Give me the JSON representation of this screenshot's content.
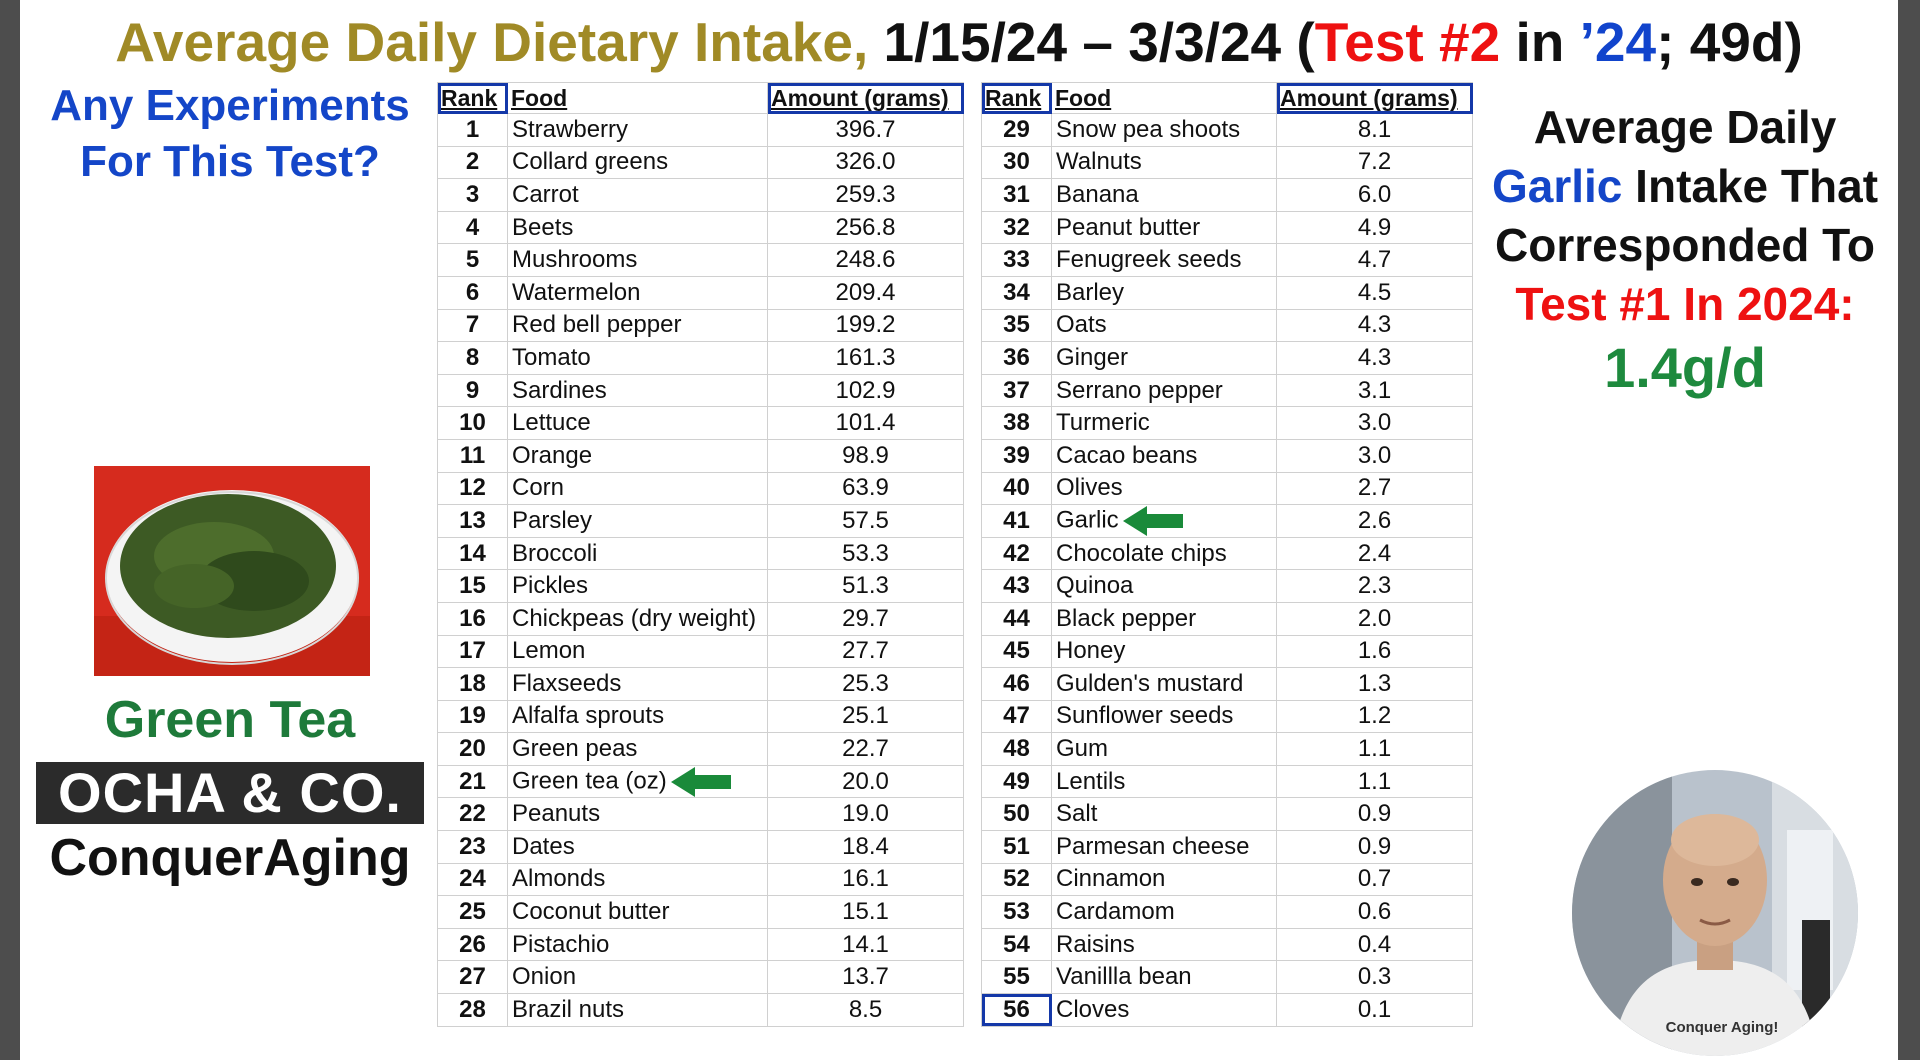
{
  "title": {
    "part1": "Average Daily Dietary Intake,",
    "part2": " 1/15/24 – 3/3/24 (",
    "part3": "Test #2",
    "part4": " in ",
    "part5": "’24",
    "part6": "; 49d)"
  },
  "left_panel": {
    "question_line1": "Any Experiments",
    "question_line2": "For This Test?",
    "product_name": "Green Tea",
    "brand": "OCHA & CO.",
    "channel": "ConquerAging"
  },
  "table": {
    "headers": {
      "rank": "Rank",
      "food": "Food",
      "amount": "Amount (grams)"
    },
    "left_rows": [
      {
        "rank": "1",
        "food": "Strawberry",
        "amount": "396.7"
      },
      {
        "rank": "2",
        "food": "Collard greens",
        "amount": "326.0"
      },
      {
        "rank": "3",
        "food": "Carrot",
        "amount": "259.3"
      },
      {
        "rank": "4",
        "food": "Beets",
        "amount": "256.8"
      },
      {
        "rank": "5",
        "food": "Mushrooms",
        "amount": "248.6"
      },
      {
        "rank": "6",
        "food": "Watermelon",
        "amount": "209.4"
      },
      {
        "rank": "7",
        "food": "Red bell pepper",
        "amount": "199.2"
      },
      {
        "rank": "8",
        "food": "Tomato",
        "amount": "161.3"
      },
      {
        "rank": "9",
        "food": "Sardines",
        "amount": "102.9"
      },
      {
        "rank": "10",
        "food": "Lettuce",
        "amount": "101.4"
      },
      {
        "rank": "11",
        "food": "Orange",
        "amount": "98.9"
      },
      {
        "rank": "12",
        "food": "Corn",
        "amount": "63.9"
      },
      {
        "rank": "13",
        "food": "Parsley",
        "amount": "57.5"
      },
      {
        "rank": "14",
        "food": "Broccoli",
        "amount": "53.3"
      },
      {
        "rank": "15",
        "food": "Pickles",
        "amount": "51.3"
      },
      {
        "rank": "16",
        "food": "Chickpeas (dry weight)",
        "amount": "29.7"
      },
      {
        "rank": "17",
        "food": "Lemon",
        "amount": "27.7"
      },
      {
        "rank": "18",
        "food": "Flaxseeds",
        "amount": "25.3"
      },
      {
        "rank": "19",
        "food": "Alfalfa sprouts",
        "amount": "25.1"
      },
      {
        "rank": "20",
        "food": "Green peas",
        "amount": "22.7"
      },
      {
        "rank": "21",
        "food": "Green tea (oz)",
        "amount": "20.0"
      },
      {
        "rank": "22",
        "food": "Peanuts",
        "amount": "19.0"
      },
      {
        "rank": "23",
        "food": "Dates",
        "amount": "18.4"
      },
      {
        "rank": "24",
        "food": "Almonds",
        "amount": "16.1"
      },
      {
        "rank": "25",
        "food": "Coconut butter",
        "amount": "15.1"
      },
      {
        "rank": "26",
        "food": "Pistachio",
        "amount": "14.1"
      },
      {
        "rank": "27",
        "food": "Onion",
        "amount": "13.7"
      },
      {
        "rank": "28",
        "food": "Brazil nuts",
        "amount": "8.5"
      }
    ],
    "right_rows": [
      {
        "rank": "29",
        "food": "Snow pea shoots",
        "amount": "8.1"
      },
      {
        "rank": "30",
        "food": "Walnuts",
        "amount": "7.2"
      },
      {
        "rank": "31",
        "food": "Banana",
        "amount": "6.0"
      },
      {
        "rank": "32",
        "food": "Peanut butter",
        "amount": "4.9"
      },
      {
        "rank": "33",
        "food": "Fenugreek seeds",
        "amount": "4.7"
      },
      {
        "rank": "34",
        "food": "Barley",
        "amount": "4.5"
      },
      {
        "rank": "35",
        "food": "Oats",
        "amount": "4.3"
      },
      {
        "rank": "36",
        "food": "Ginger",
        "amount": "4.3"
      },
      {
        "rank": "37",
        "food": "Serrano pepper",
        "amount": "3.1"
      },
      {
        "rank": "38",
        "food": "Turmeric",
        "amount": "3.0"
      },
      {
        "rank": "39",
        "food": "Cacao beans",
        "amount": "3.0"
      },
      {
        "rank": "40",
        "food": "Olives",
        "amount": "2.7"
      },
      {
        "rank": "41",
        "food": "Garlic",
        "amount": "2.6"
      },
      {
        "rank": "42",
        "food": "Chocolate chips",
        "amount": "2.4"
      },
      {
        "rank": "43",
        "food": "Quinoa",
        "amount": "2.3"
      },
      {
        "rank": "44",
        "food": "Black pepper",
        "amount": "2.0"
      },
      {
        "rank": "45",
        "food": "Honey",
        "amount": "1.6"
      },
      {
        "rank": "46",
        "food": "Gulden's mustard",
        "amount": "1.3"
      },
      {
        "rank": "47",
        "food": "Sunflower seeds",
        "amount": "1.2"
      },
      {
        "rank": "48",
        "food": "Gum",
        "amount": "1.1"
      },
      {
        "rank": "49",
        "food": "Lentils",
        "amount": "1.1"
      },
      {
        "rank": "50",
        "food": "Salt",
        "amount": "0.9"
      },
      {
        "rank": "51",
        "food": "Parmesan cheese",
        "amount": "0.9"
      },
      {
        "rank": "52",
        "food": "Cinnamon",
        "amount": "0.7"
      },
      {
        "rank": "53",
        "food": "Cardamom",
        "amount": "0.6"
      },
      {
        "rank": "54",
        "food": "Raisins",
        "amount": "0.4"
      },
      {
        "rank": "55",
        "food": "Vanillla bean",
        "amount": "0.3"
      },
      {
        "rank": "56",
        "food": "Cloves",
        "amount": "0.1"
      }
    ],
    "highlighted_rows": [
      "21",
      "41"
    ],
    "boxed_rank": "56",
    "arrow_icon": "green-left-arrow-icon",
    "arrow_color": "#1a8a3a",
    "box_color": "#1438a8"
  },
  "right_panel": {
    "line1": "Average Daily",
    "line2_blue": "Garlic",
    "line2_rest": " Intake That",
    "line3": "Corresponded To",
    "line4": "Test #1 In 2024:",
    "value": "1.4g/d"
  },
  "colors": {
    "title_gold": "#a08a26",
    "accent_red": "#ee1111",
    "accent_blue": "#1446c8",
    "accent_green": "#1e7a3a"
  },
  "avatar": {
    "shirt_text": "Conquer Aging!"
  }
}
